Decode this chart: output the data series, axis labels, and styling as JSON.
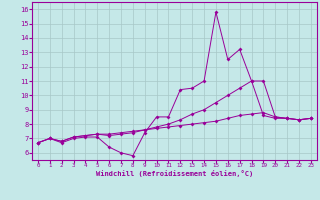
{
  "xlabel": "Windchill (Refroidissement éolien,°C)",
  "x_ticks": [
    0,
    1,
    2,
    3,
    4,
    5,
    6,
    7,
    8,
    9,
    10,
    11,
    12,
    13,
    14,
    15,
    16,
    17,
    18,
    19,
    20,
    21,
    22,
    23
  ],
  "y_ticks": [
    6,
    7,
    8,
    9,
    10,
    11,
    12,
    13,
    14,
    15,
    16
  ],
  "xlim": [
    -0.5,
    23.5
  ],
  "ylim": [
    5.5,
    16.5
  ],
  "color": "#990099",
  "bg_color": "#c5e8e8",
  "line1_y": [
    6.7,
    7.0,
    6.7,
    7.0,
    7.1,
    7.1,
    6.4,
    6.0,
    5.8,
    7.4,
    8.5,
    8.5,
    10.4,
    10.5,
    11.0,
    15.8,
    12.5,
    13.2,
    11.0,
    8.6,
    8.4,
    8.4,
    8.3,
    8.4
  ],
  "line2_y": [
    6.7,
    7.0,
    6.8,
    7.1,
    7.2,
    7.3,
    7.2,
    7.3,
    7.4,
    7.6,
    7.8,
    8.0,
    8.3,
    8.7,
    9.0,
    9.5,
    10.0,
    10.5,
    11.0,
    11.0,
    8.5,
    8.4,
    8.3,
    8.4
  ],
  "line3_y": [
    6.7,
    7.0,
    6.8,
    7.1,
    7.2,
    7.3,
    7.3,
    7.4,
    7.5,
    7.6,
    7.7,
    7.8,
    7.9,
    8.0,
    8.1,
    8.2,
    8.4,
    8.6,
    8.7,
    8.8,
    8.5,
    8.4,
    8.3,
    8.4
  ]
}
